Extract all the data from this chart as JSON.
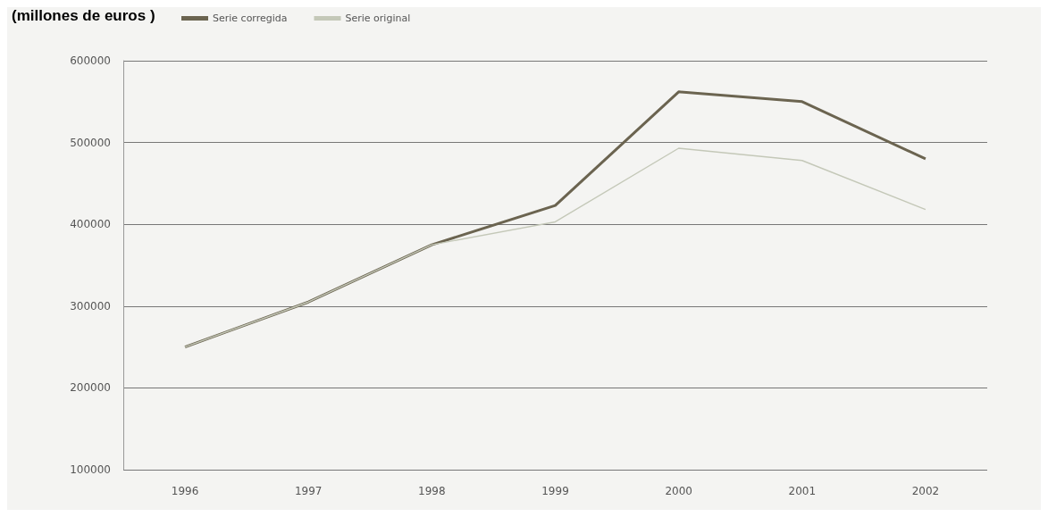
{
  "chart_data": {
    "type": "line",
    "title": "(millones de euros )",
    "categories": [
      "1996",
      "1997",
      "1998",
      "1999",
      "2000",
      "2001",
      "2002"
    ],
    "series": [
      {
        "name": "Serie corregida",
        "color": "#6b6450",
        "values": [
          250000,
          305000,
          375000,
          423000,
          562000,
          550000,
          480000
        ]
      },
      {
        "name": "Serie original",
        "color": "#c4c8b8",
        "values": [
          250000,
          305000,
          375000,
          403000,
          493000,
          478000,
          418000
        ]
      }
    ],
    "ylim": [
      100000,
      600000
    ],
    "yticks": [
      100000,
      200000,
      300000,
      400000,
      500000,
      600000
    ],
    "grid": "y",
    "legend": "top left",
    "marker": "none",
    "line_style": "solid"
  }
}
